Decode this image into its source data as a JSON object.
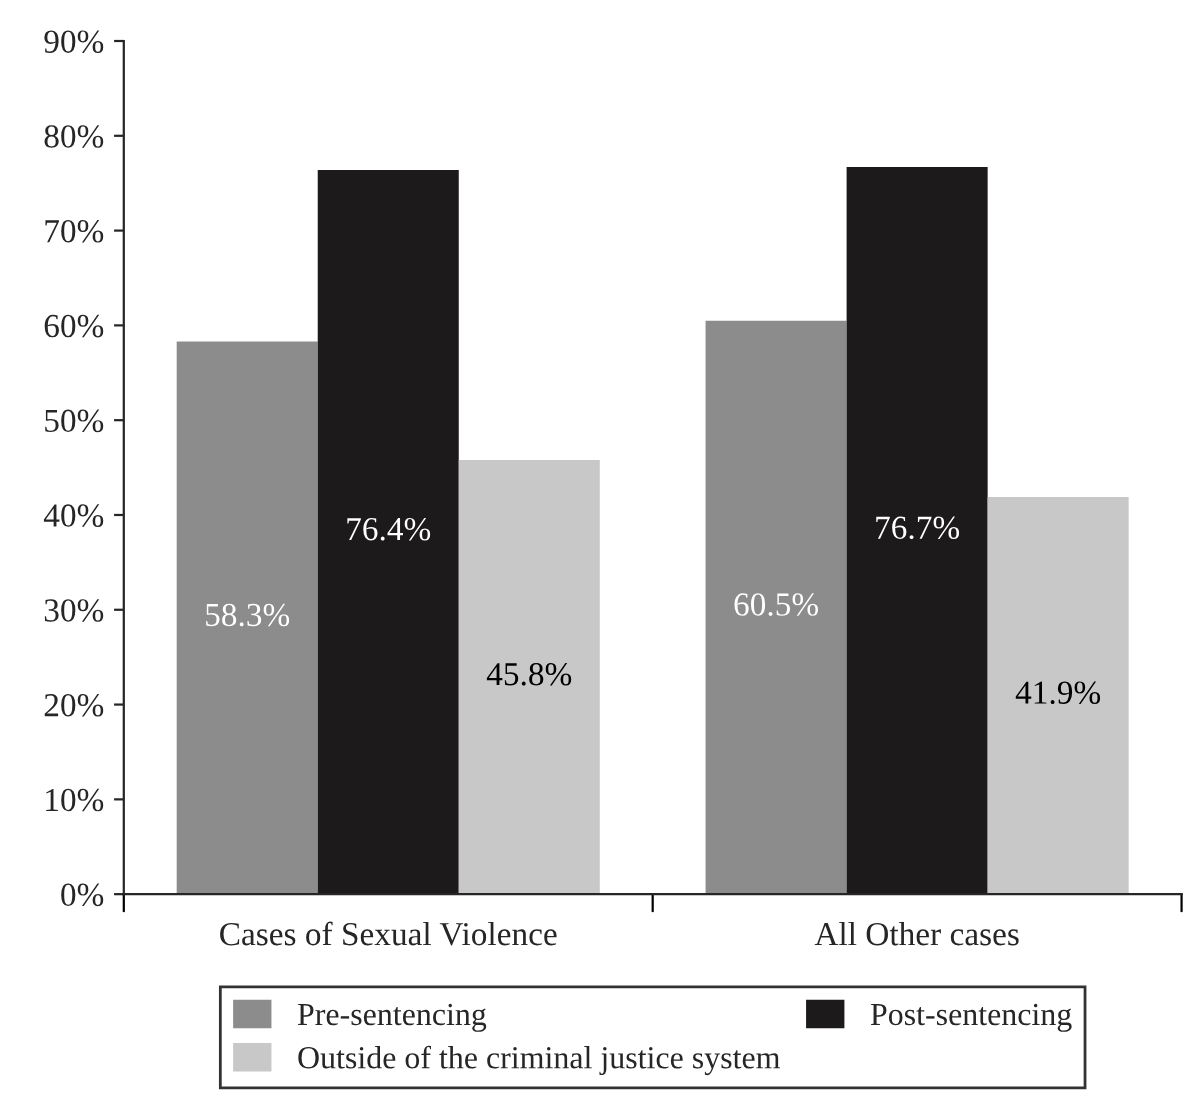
{
  "chart_data": {
    "type": "bar",
    "categories": [
      "Cases of Sexual Violence",
      "All Other cases"
    ],
    "series": [
      {
        "name": "Pre-sentencing",
        "color": "#8c8c8c",
        "values": [
          58.3,
          60.5
        ],
        "value_labels": [
          "58.3%",
          "60.5%"
        ]
      },
      {
        "name": "Post-sentencing",
        "color": "#1c1a1b",
        "values": [
          76.4,
          76.7
        ],
        "value_labels": [
          "76.4%",
          "76.7%"
        ]
      },
      {
        "name": "Outside of the criminal justice system",
        "color": "#c8c8c8",
        "values": [
          45.8,
          41.9
        ],
        "value_labels": [
          "45.8%",
          "41.9%"
        ]
      }
    ],
    "ylim": [
      0,
      90
    ],
    "yticks": [
      {
        "value": 0,
        "label": "0%"
      },
      {
        "value": 10,
        "label": "10%"
      },
      {
        "value": 20,
        "label": "20%"
      },
      {
        "value": 30,
        "label": "30%"
      },
      {
        "value": 40,
        "label": "40%"
      },
      {
        "value": 50,
        "label": "50%"
      },
      {
        "value": 60,
        "label": "60%"
      },
      {
        "value": 70,
        "label": "70%"
      },
      {
        "value": 80,
        "label": "80%"
      },
      {
        "value": 90,
        "label": "90%"
      }
    ],
    "grid": false,
    "legend": "bottom"
  }
}
